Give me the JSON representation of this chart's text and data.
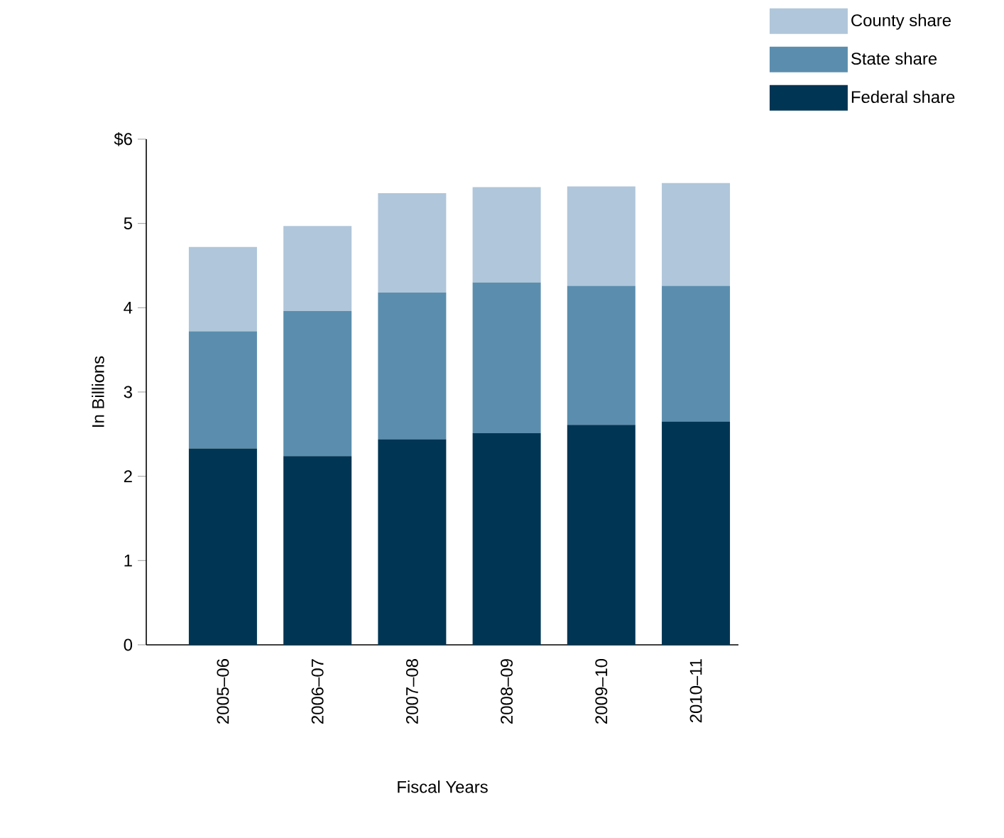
{
  "chart_data": {
    "type": "bar",
    "stacked": true,
    "xlabel": "Fiscal Years",
    "ylabel": "In Billions",
    "categories": [
      "2005–06",
      "2006–07",
      "2007–08",
      "2008–09",
      "2009–10",
      "2010–11"
    ],
    "series": [
      {
        "name": "Federal share",
        "color": "#003554",
        "values": [
          2.33,
          2.24,
          2.44,
          2.51,
          2.61,
          2.65
        ]
      },
      {
        "name": "State share",
        "color": "#5b8eae",
        "values": [
          1.39,
          1.72,
          1.74,
          1.79,
          1.65,
          1.61
        ]
      },
      {
        "name": "County share",
        "color": "#b0c6da",
        "values": [
          1.0,
          1.01,
          1.18,
          1.13,
          1.18,
          1.22
        ]
      }
    ],
    "ylim": [
      0,
      6
    ],
    "yticks": [
      0,
      1,
      2,
      3,
      4,
      5,
      {
        "value": 6,
        "label": "$6"
      }
    ],
    "grid": false,
    "legend": "top right"
  }
}
